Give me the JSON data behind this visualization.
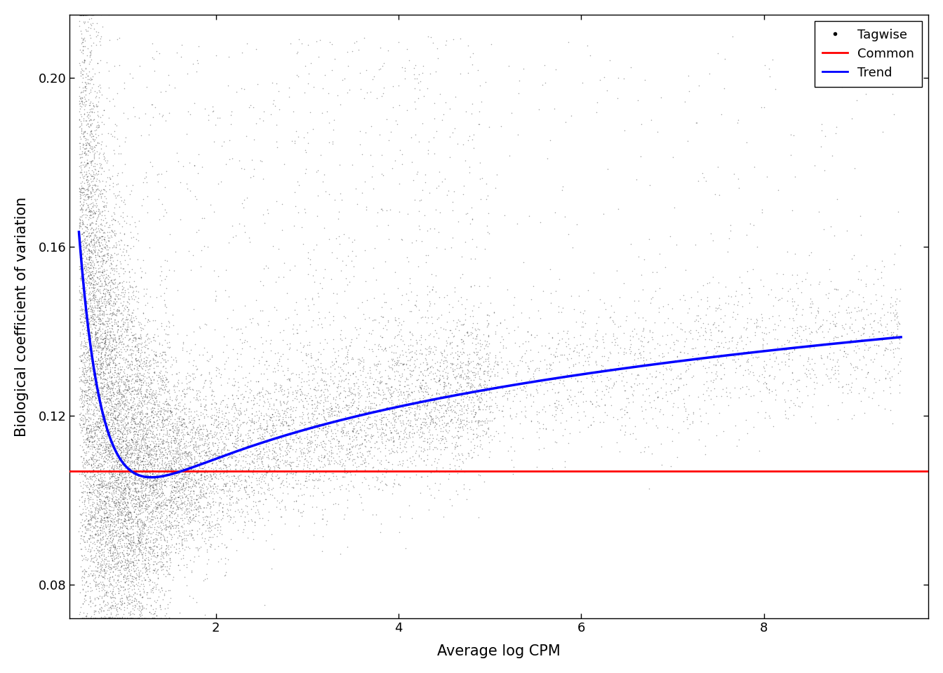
{
  "title": "",
  "xlabel": "Average log CPM",
  "ylabel": "Biological coefficient of variation",
  "xlim": [
    0.4,
    9.8
  ],
  "ylim": [
    0.072,
    0.215
  ],
  "xticks": [
    2,
    4,
    6,
    8
  ],
  "yticks": [
    0.08,
    0.12,
    0.16,
    0.2
  ],
  "common_bcv": 0.107,
  "common_color": "#FF0000",
  "trend_color": "#0000FF",
  "tagwise_color": "#000000",
  "legend_labels": [
    "Tagwise",
    "Common",
    "Trend"
  ],
  "figsize": [
    13.44,
    9.6
  ],
  "dpi": 100,
  "random_seed": 42,
  "n_points": 15000
}
